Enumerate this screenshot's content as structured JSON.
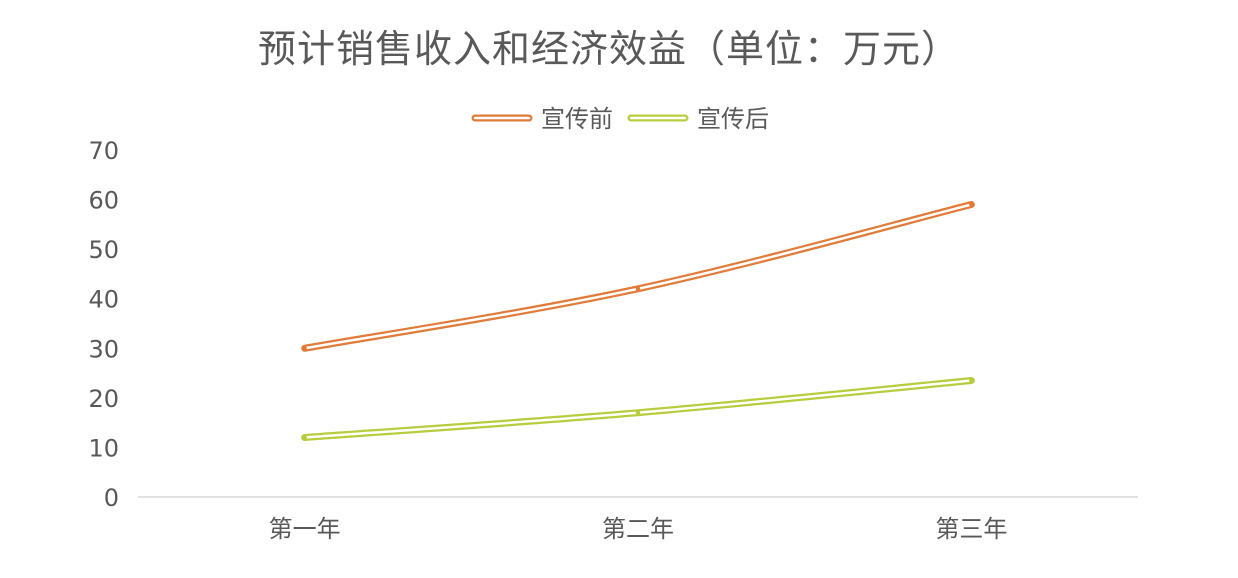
{
  "chart_data": {
    "type": "line",
    "title": "预计销售收入和经济效益（单位：万元）",
    "categories": [
      "第一年",
      "第二年",
      "第三年"
    ],
    "series": [
      {
        "name": "宣传前",
        "values": [
          30,
          42,
          59
        ],
        "color": "#E07B39"
      },
      {
        "name": "宣传后",
        "values": [
          12,
          17,
          23.5
        ],
        "color": "#B8CD3D"
      }
    ],
    "ylim": [
      0,
      70
    ],
    "yticks": [
      0,
      10,
      20,
      30,
      40,
      50,
      60,
      70
    ],
    "grid": false,
    "legend_position": "top",
    "line_style": "smooth-double"
  }
}
